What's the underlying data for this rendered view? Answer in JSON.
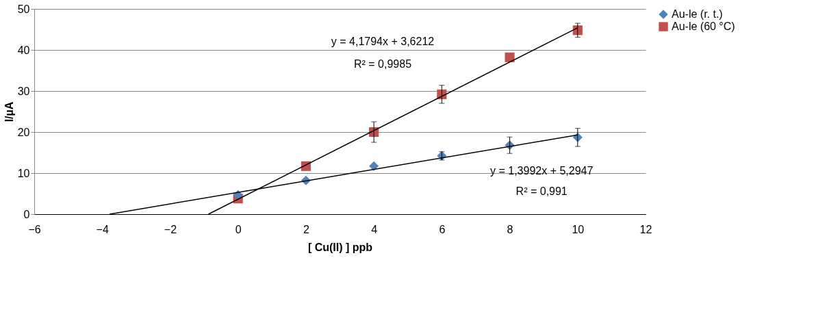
{
  "chart_data": {
    "type": "scatter",
    "xlabel": "[ Cu(II) ] ppb",
    "ylabel": "I/µA",
    "xlim": [
      -6,
      12
    ],
    "xticks": [
      -6,
      -4,
      -2,
      0,
      2,
      4,
      6,
      8,
      10,
      12
    ],
    "ylim": [
      0,
      50
    ],
    "yticks": [
      0,
      10,
      20,
      30,
      40,
      50
    ],
    "grid": "y",
    "legend": "right",
    "series": [
      {
        "name": "Au-le (r. t.)",
        "marker": "diamond",
        "color": "#4f81bd",
        "x": [
          0,
          2,
          4,
          6,
          8,
          10
        ],
        "values": [
          4.7,
          8.2,
          11.7,
          14.2,
          16.8,
          18.7
        ],
        "errors": [
          null,
          null,
          null,
          1.0,
          2.0,
          2.2
        ]
      },
      {
        "name": "Au-le (60 °C)",
        "marker": "square",
        "color": "#c0504d",
        "x": [
          0,
          2,
          4,
          6,
          8,
          10
        ],
        "values": [
          3.8,
          11.7,
          20.0,
          29.2,
          38.2,
          44.8
        ],
        "errors": [
          null,
          null,
          2.5,
          2.2,
          null,
          1.7
        ]
      },
      {
        "type": "line",
        "marker": "none",
        "color": "#000000",
        "x": [
          -3.78,
          10
        ],
        "values": [
          0,
          19.3
        ]
      },
      {
        "type": "line",
        "marker": "none",
        "color": "#000000",
        "x": [
          -0.87,
          10
        ],
        "values": [
          0,
          45.4
        ]
      }
    ],
    "annotations": [
      "y = 4,1794x + 3,6212",
      "R² = 0,9985",
      "y = 1,3992x + 5,2947",
      "R² = 0,991"
    ]
  }
}
